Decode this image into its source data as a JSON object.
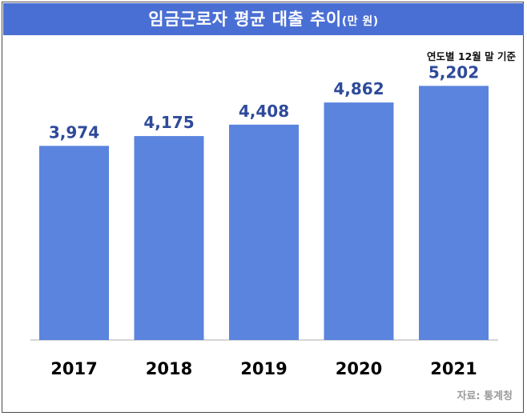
{
  "header": {
    "title": "임금근로자 평균 대출 추이",
    "unit": "(만 원)"
  },
  "basis_note": "연도별 12월 말 기준",
  "source_note": "자료: 통계청",
  "colors": {
    "title_bg": "#4a6fd4",
    "bar": "#5b84de",
    "value_label": "#2e4a9a",
    "axis": "#c8c8c8"
  },
  "chart_data": {
    "type": "bar",
    "title": "임금근로자 평균 대출 추이",
    "categories": [
      "2017",
      "2018",
      "2019",
      "2020",
      "2021"
    ],
    "values": [
      3974,
      4175,
      4408,
      4862,
      5202
    ],
    "value_labels": [
      "3,974",
      "4,175",
      "4,408",
      "4,862",
      "5,202"
    ],
    "ylabel": "",
    "xlabel": "",
    "ylim": [
      0,
      5650
    ],
    "grid": false,
    "legend": "none"
  }
}
